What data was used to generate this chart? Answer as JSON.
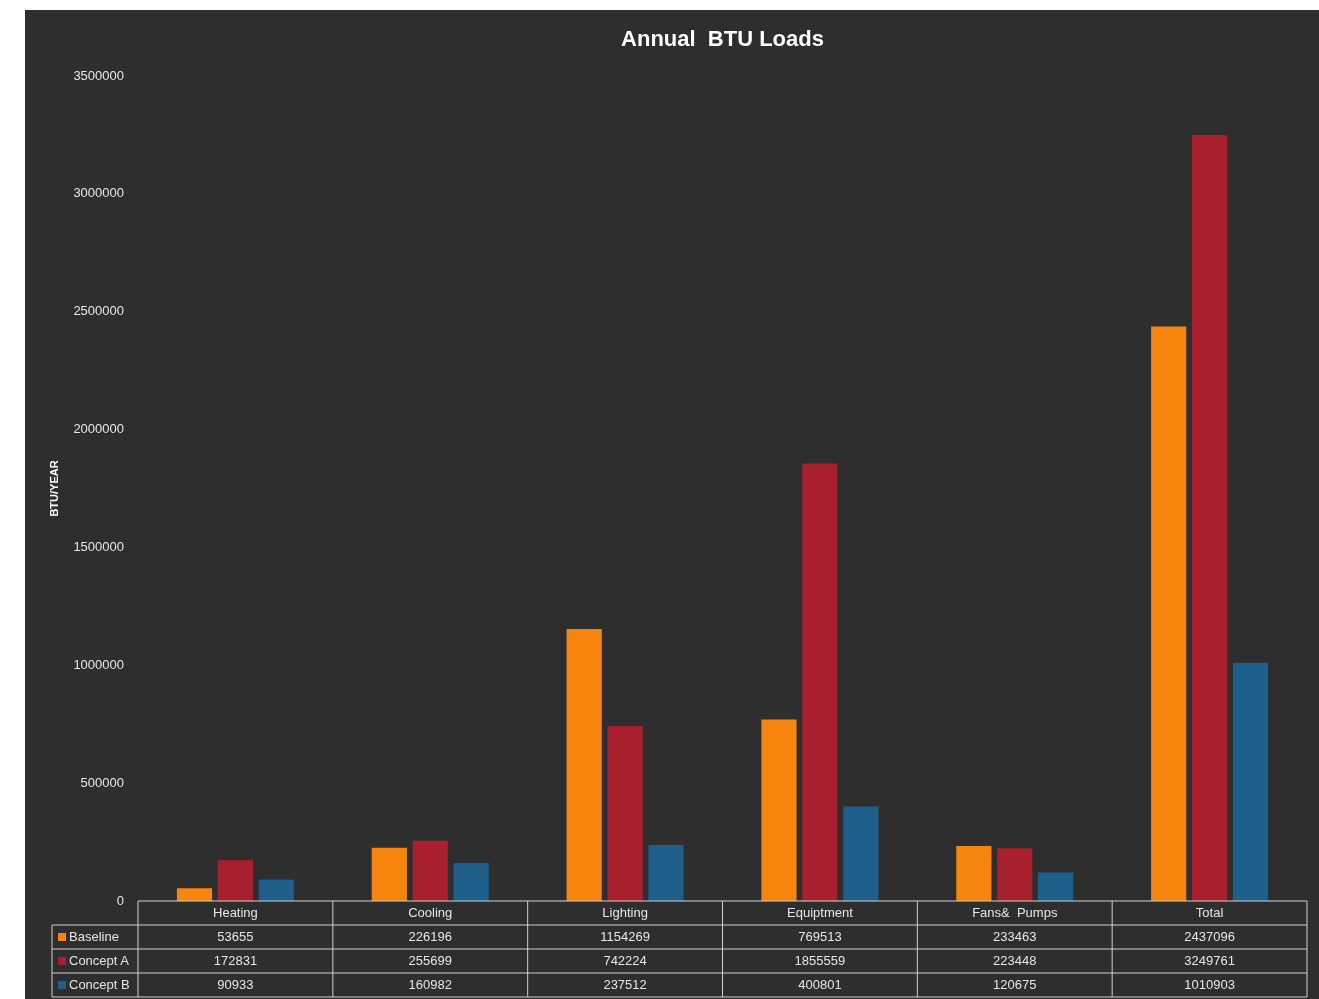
{
  "chart_data": {
    "type": "bar",
    "title": "Annual  BTU Loads",
    "ylabel": "BTU/YEAR",
    "categories": [
      "Heating",
      "Cooling",
      "Lighting",
      "Equiptment",
      "Fans&  Pumps",
      "Total"
    ],
    "series": [
      {
        "name": "Baseline",
        "color": "#f5850f",
        "values": [
          53655,
          226196,
          1154269,
          769513,
          233463,
          2437096
        ]
      },
      {
        "name": "Concept A",
        "color": "#a8202e",
        "values": [
          172831,
          255699,
          742224,
          1855559,
          223448,
          3249761
        ]
      },
      {
        "name": "Concept B",
        "color": "#1f5f8c",
        "values": [
          90933,
          160982,
          237512,
          400801,
          120675,
          1010903
        ]
      }
    ],
    "ylim": [
      0,
      3500000
    ],
    "yticks": [
      0,
      500000,
      1000000,
      1500000,
      2000000,
      2500000,
      3000000,
      3500000
    ],
    "legend": "bottom",
    "data_labels": true,
    "grid": false
  }
}
